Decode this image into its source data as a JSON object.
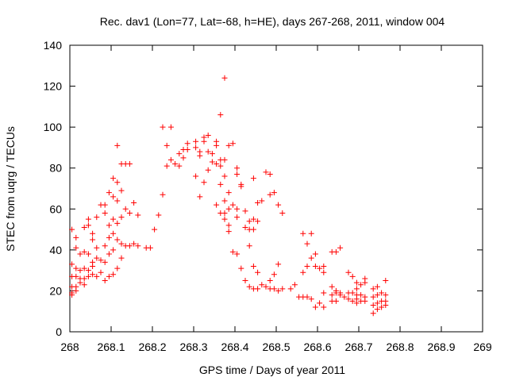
{
  "chart_data": {
    "type": "scatter",
    "title": "Rec. dav1 (Lon=77, Lat=-68, h=HE), days 267-268, 2011, window 004",
    "xlabel": "GPS time / Days of year 2011",
    "ylabel": "STEC from uqrg / TECUs",
    "xlim": [
      268,
      269
    ],
    "ylim": [
      0,
      140
    ],
    "x_ticks": [
      268,
      268.1,
      268.2,
      268.3,
      268.4,
      268.5,
      268.6,
      268.7,
      268.8,
      268.9,
      269
    ],
    "x_tick_labels": [
      "268",
      "268.1",
      "268.2",
      "268.3",
      "268.4",
      "268.5",
      "268.6",
      "268.7",
      "268.8",
      "268.9",
      "269"
    ],
    "y_ticks": [
      0,
      20,
      40,
      60,
      80,
      100,
      120,
      140
    ],
    "y_tick_labels": [
      "0",
      "20",
      "40",
      "60",
      "80",
      "100",
      "120",
      "140"
    ],
    "grid": false,
    "legend": false,
    "marker": "plus",
    "marker_color": "#ff0000",
    "points": [
      [
        268.005,
        50
      ],
      [
        268.005,
        33
      ],
      [
        268.005,
        27
      ],
      [
        268.005,
        22
      ],
      [
        268.005,
        19
      ],
      [
        268.005,
        18
      ],
      [
        268.015,
        46
      ],
      [
        268.015,
        41
      ],
      [
        268.015,
        31
      ],
      [
        268.015,
        27
      ],
      [
        268.015,
        22
      ],
      [
        268.015,
        20
      ],
      [
        268.025,
        38
      ],
      [
        268.025,
        30
      ],
      [
        268.025,
        26
      ],
      [
        268.025,
        24
      ],
      [
        268.035,
        51
      ],
      [
        268.035,
        39
      ],
      [
        268.035,
        31
      ],
      [
        268.035,
        26
      ],
      [
        268.035,
        23
      ],
      [
        268.045,
        55
      ],
      [
        268.045,
        52
      ],
      [
        268.045,
        38
      ],
      [
        268.045,
        30
      ],
      [
        268.045,
        27
      ],
      [
        268.055,
        48
      ],
      [
        268.055,
        45
      ],
      [
        268.055,
        34
      ],
      [
        268.055,
        32
      ],
      [
        268.055,
        28
      ],
      [
        268.065,
        56
      ],
      [
        268.065,
        41
      ],
      [
        268.065,
        36
      ],
      [
        268.065,
        27
      ],
      [
        268.075,
        62
      ],
      [
        268.075,
        35
      ],
      [
        268.075,
        29
      ],
      [
        268.085,
        62
      ],
      [
        268.085,
        58
      ],
      [
        268.085,
        42
      ],
      [
        268.085,
        34
      ],
      [
        268.085,
        25
      ],
      [
        268.095,
        68
      ],
      [
        268.095,
        52
      ],
      [
        268.095,
        46
      ],
      [
        268.095,
        38
      ],
      [
        268.095,
        27
      ],
      [
        268.105,
        75
      ],
      [
        268.105,
        66
      ],
      [
        268.105,
        55
      ],
      [
        268.105,
        48
      ],
      [
        268.105,
        40
      ],
      [
        268.105,
        28
      ],
      [
        268.115,
        91
      ],
      [
        268.115,
        73
      ],
      [
        268.115,
        64
      ],
      [
        268.115,
        53
      ],
      [
        268.115,
        45
      ],
      [
        268.115,
        31
      ],
      [
        268.125,
        82
      ],
      [
        268.125,
        69
      ],
      [
        268.125,
        56
      ],
      [
        268.125,
        43
      ],
      [
        268.125,
        36
      ],
      [
        268.135,
        82
      ],
      [
        268.135,
        60
      ],
      [
        268.135,
        42
      ],
      [
        268.145,
        82
      ],
      [
        268.145,
        58
      ],
      [
        268.145,
        42
      ],
      [
        268.155,
        63
      ],
      [
        268.155,
        43
      ],
      [
        268.165,
        57
      ],
      [
        268.165,
        42
      ],
      [
        268.185,
        41
      ],
      [
        268.195,
        41
      ],
      [
        268.205,
        50
      ],
      [
        268.215,
        57
      ],
      [
        268.225,
        100
      ],
      [
        268.225,
        67
      ],
      [
        268.235,
        91
      ],
      [
        268.235,
        81
      ],
      [
        268.245,
        100
      ],
      [
        268.245,
        84
      ],
      [
        268.255,
        82
      ],
      [
        268.265,
        87
      ],
      [
        268.265,
        81
      ],
      [
        268.275,
        89
      ],
      [
        268.275,
        85
      ],
      [
        268.285,
        92
      ],
      [
        268.285,
        89
      ],
      [
        268.305,
        93
      ],
      [
        268.305,
        90
      ],
      [
        268.305,
        76
      ],
      [
        268.315,
        88
      ],
      [
        268.315,
        86
      ],
      [
        268.315,
        66
      ],
      [
        268.325,
        95
      ],
      [
        268.325,
        93
      ],
      [
        268.325,
        73
      ],
      [
        268.335,
        96
      ],
      [
        268.335,
        88
      ],
      [
        268.335,
        79
      ],
      [
        268.345,
        87
      ],
      [
        268.345,
        83
      ],
      [
        268.355,
        93
      ],
      [
        268.355,
        91
      ],
      [
        268.355,
        82
      ],
      [
        268.355,
        62
      ],
      [
        268.365,
        106
      ],
      [
        268.365,
        84
      ],
      [
        268.365,
        81
      ],
      [
        268.365,
        72
      ],
      [
        268.365,
        58
      ],
      [
        268.375,
        124
      ],
      [
        268.375,
        84
      ],
      [
        268.375,
        76
      ],
      [
        268.375,
        64
      ],
      [
        268.375,
        58
      ],
      [
        268.375,
        55
      ],
      [
        268.385,
        91
      ],
      [
        268.385,
        68
      ],
      [
        268.385,
        60
      ],
      [
        268.385,
        52
      ],
      [
        268.385,
        49
      ],
      [
        268.395,
        92
      ],
      [
        268.395,
        62
      ],
      [
        268.395,
        39
      ],
      [
        268.405,
        80
      ],
      [
        268.405,
        77
      ],
      [
        268.405,
        60
      ],
      [
        268.405,
        56
      ],
      [
        268.405,
        38
      ],
      [
        268.415,
        72
      ],
      [
        268.415,
        71
      ],
      [
        268.415,
        31
      ],
      [
        268.425,
        59
      ],
      [
        268.425,
        51
      ],
      [
        268.425,
        25
      ],
      [
        268.435,
        54
      ],
      [
        268.435,
        50
      ],
      [
        268.435,
        42
      ],
      [
        268.435,
        22
      ],
      [
        268.445,
        75
      ],
      [
        268.445,
        55
      ],
      [
        268.445,
        50
      ],
      [
        268.445,
        32
      ],
      [
        268.445,
        21
      ],
      [
        268.455,
        63
      ],
      [
        268.455,
        54
      ],
      [
        268.455,
        29
      ],
      [
        268.455,
        21
      ],
      [
        268.465,
        64
      ],
      [
        268.465,
        23
      ],
      [
        268.475,
        78
      ],
      [
        268.475,
        22
      ],
      [
        268.485,
        77
      ],
      [
        268.485,
        67
      ],
      [
        268.485,
        25
      ],
      [
        268.485,
        21
      ],
      [
        268.495,
        68
      ],
      [
        268.495,
        28
      ],
      [
        268.495,
        21
      ],
      [
        268.505,
        62
      ],
      [
        268.505,
        33
      ],
      [
        268.505,
        20
      ],
      [
        268.515,
        58
      ],
      [
        268.515,
        21
      ],
      [
        268.535,
        21
      ],
      [
        268.545,
        23
      ],
      [
        268.555,
        17
      ],
      [
        268.565,
        48
      ],
      [
        268.565,
        29
      ],
      [
        268.565,
        17
      ],
      [
        268.575,
        43
      ],
      [
        268.575,
        32
      ],
      [
        268.575,
        17
      ],
      [
        268.585,
        48
      ],
      [
        268.585,
        36
      ],
      [
        268.585,
        16
      ],
      [
        268.595,
        38
      ],
      [
        268.595,
        32
      ],
      [
        268.595,
        12
      ],
      [
        268.605,
        31
      ],
      [
        268.605,
        14
      ],
      [
        268.615,
        32
      ],
      [
        268.615,
        29
      ],
      [
        268.615,
        19
      ],
      [
        268.615,
        12
      ],
      [
        268.635,
        39
      ],
      [
        268.635,
        22
      ],
      [
        268.635,
        18
      ],
      [
        268.635,
        15
      ],
      [
        268.645,
        39
      ],
      [
        268.645,
        20
      ],
      [
        268.645,
        19
      ],
      [
        268.645,
        15
      ],
      [
        268.655,
        41
      ],
      [
        268.655,
        19
      ],
      [
        268.655,
        18
      ],
      [
        268.665,
        17
      ],
      [
        268.675,
        29
      ],
      [
        268.675,
        19
      ],
      [
        268.675,
        16
      ],
      [
        268.685,
        27
      ],
      [
        268.685,
        19
      ],
      [
        268.685,
        15
      ],
      [
        268.695,
        24
      ],
      [
        268.695,
        21
      ],
      [
        268.695,
        18
      ],
      [
        268.695,
        16
      ],
      [
        268.695,
        14
      ],
      [
        268.705,
        23
      ],
      [
        268.705,
        18
      ],
      [
        268.705,
        15
      ],
      [
        268.715,
        26
      ],
      [
        268.715,
        24
      ],
      [
        268.715,
        17
      ],
      [
        268.715,
        15
      ],
      [
        268.735,
        21
      ],
      [
        268.735,
        17
      ],
      [
        268.735,
        13
      ],
      [
        268.735,
        9
      ],
      [
        268.745,
        22
      ],
      [
        268.745,
        18
      ],
      [
        268.745,
        14
      ],
      [
        268.745,
        11
      ],
      [
        268.755,
        19
      ],
      [
        268.755,
        15
      ],
      [
        268.755,
        12
      ],
      [
        268.765,
        25
      ],
      [
        268.765,
        18
      ],
      [
        268.765,
        15
      ],
      [
        268.765,
        13
      ]
    ]
  }
}
